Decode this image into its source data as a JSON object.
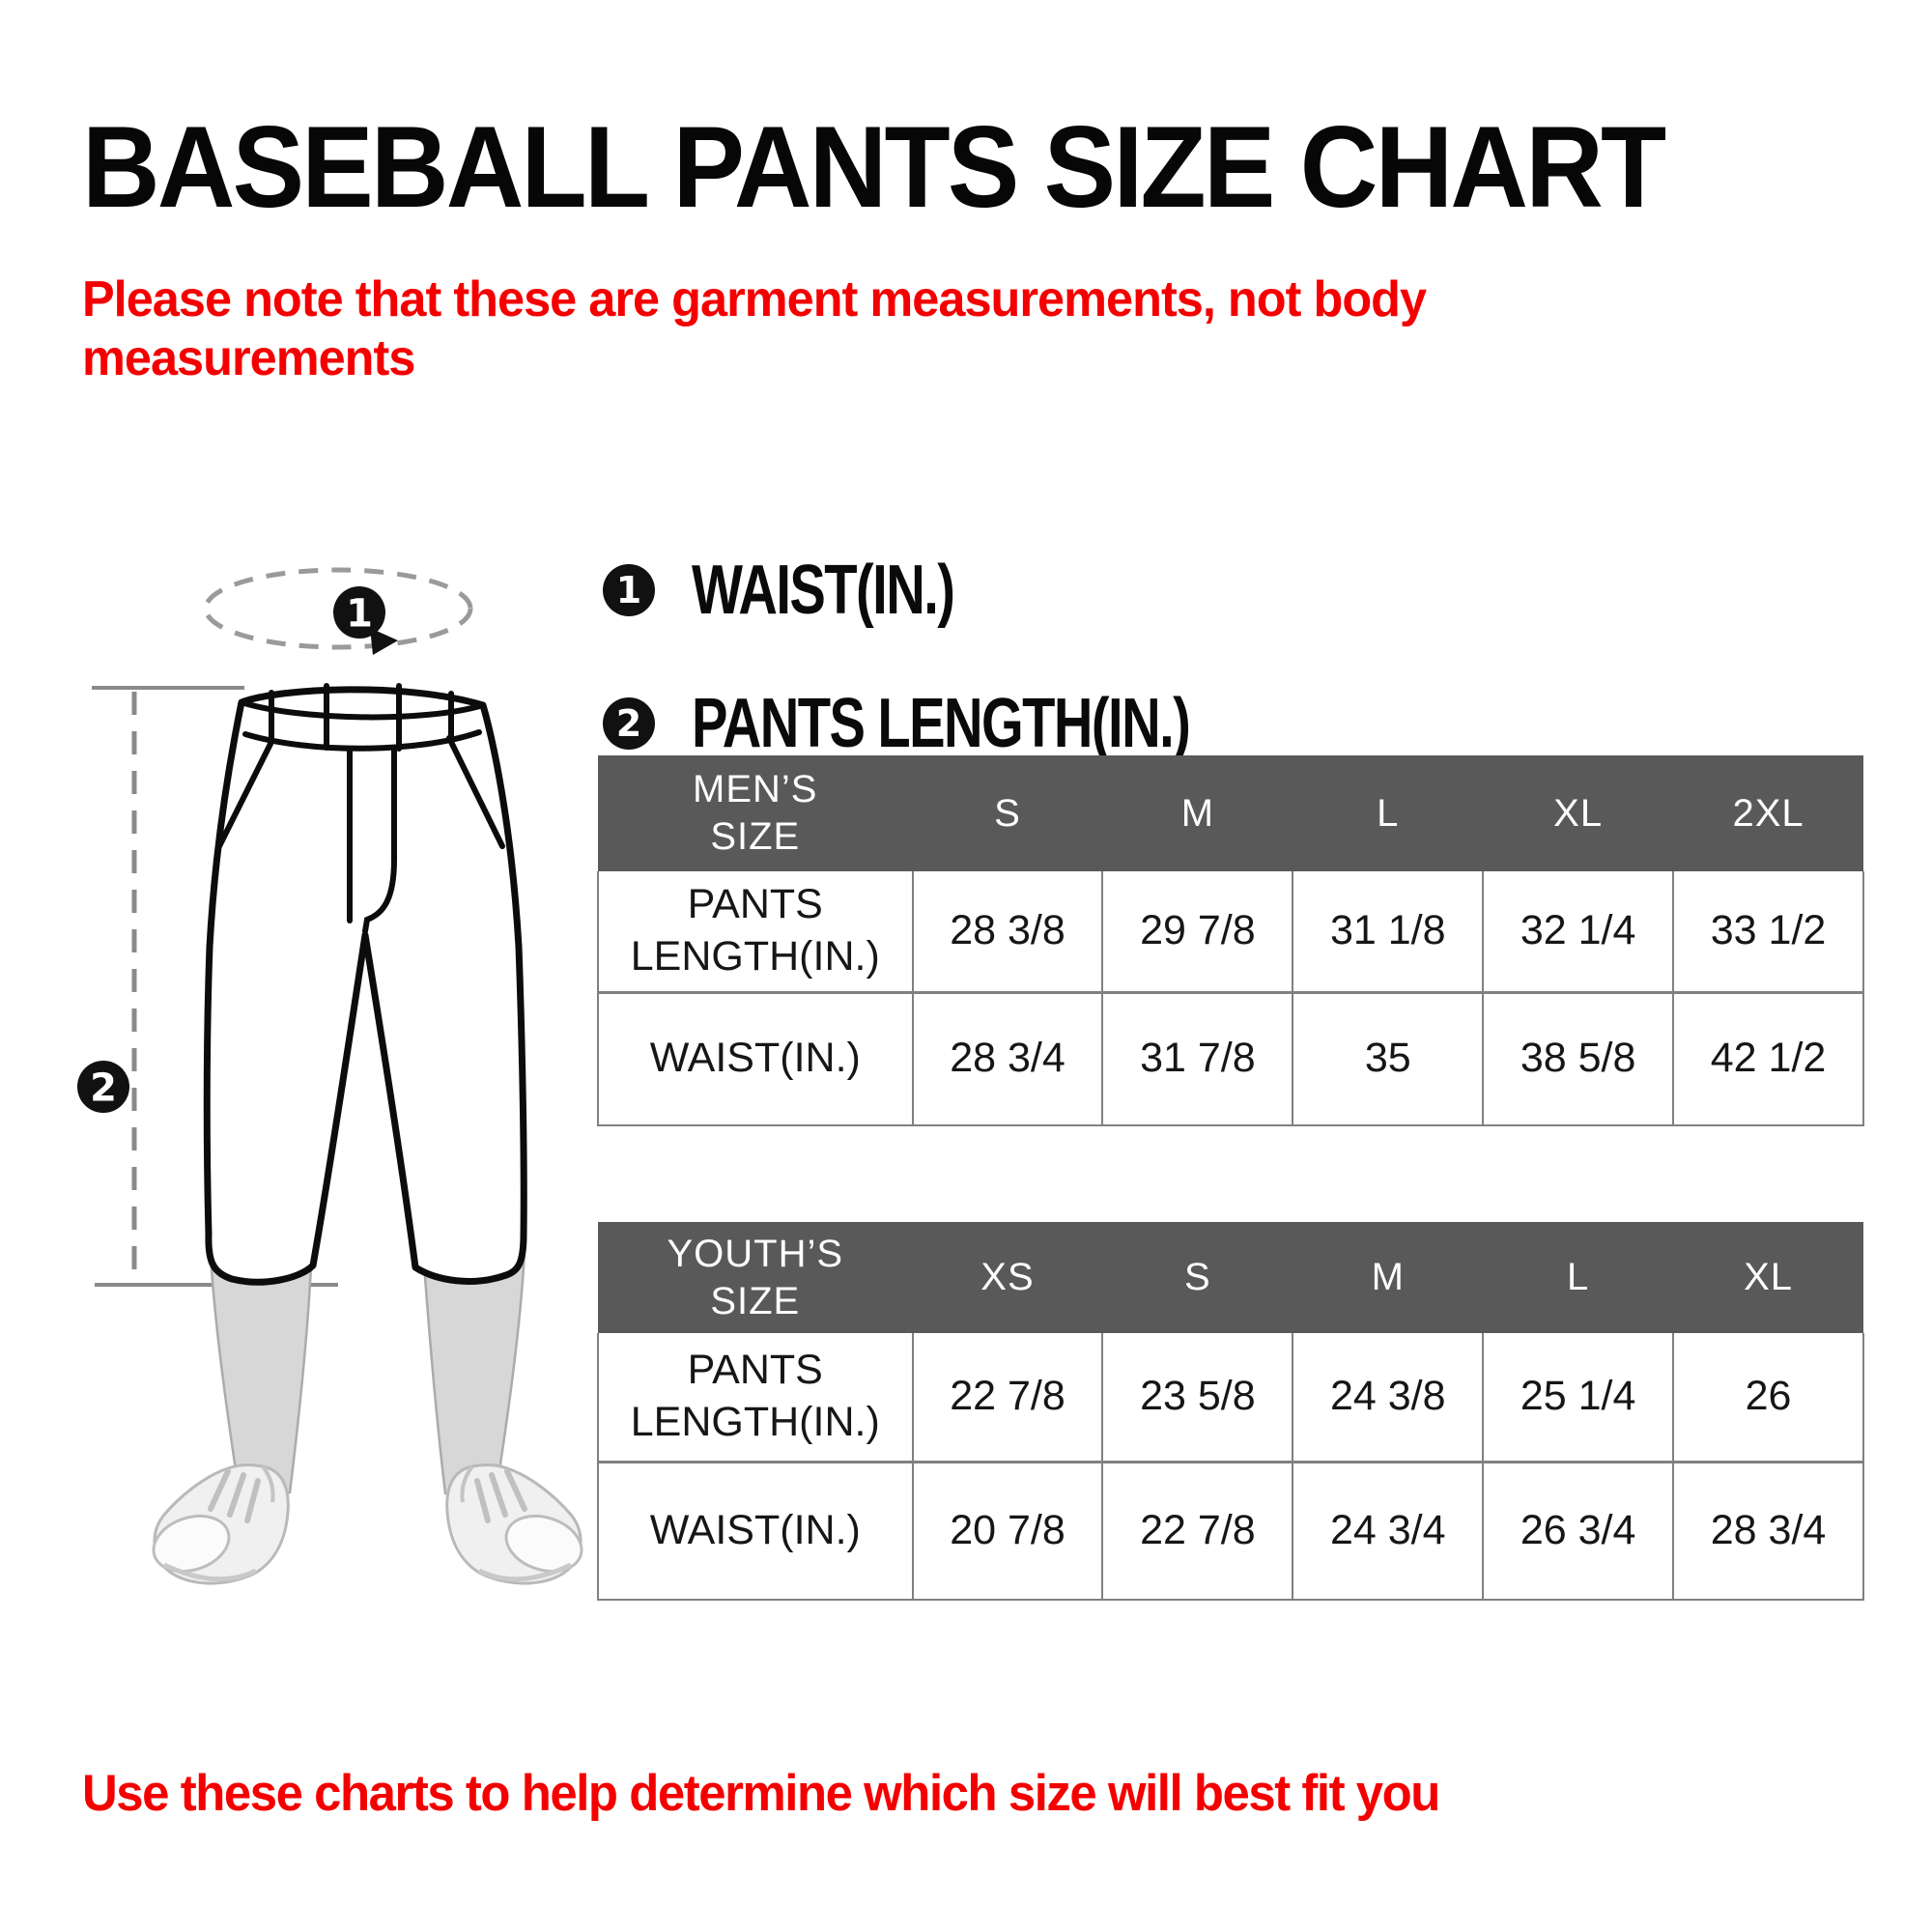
{
  "page": {
    "title": "BASEBALL PANTS SIZE CHART",
    "note": "Please note that these are garment measurements, not body\nmeasurements",
    "footer": "Use these charts to help determine which size will best fit you"
  },
  "colors": {
    "red": "#f40000",
    "header_bg": "#595959",
    "border": "#808080",
    "ink": "#0d0d0d"
  },
  "legend": {
    "items": [
      {
        "marker": "1",
        "label": "WAIST(IN.)"
      },
      {
        "marker": "2",
        "label": "PANTS LENGTH(IN.)"
      }
    ]
  },
  "diagram": {
    "marker1": "1",
    "marker2": "2"
  },
  "chart_data": [
    {
      "type": "table",
      "name": "mens",
      "corner_label": "MEN’S\nSIZE",
      "columns": [
        "S",
        "M",
        "L",
        "XL",
        "2XL"
      ],
      "rows": [
        {
          "label": "PANTS\nLENGTH(IN.)",
          "values": [
            "28 3/8",
            "29 7/8",
            "31 1/8",
            "32 1/4",
            "33 1/2"
          ]
        },
        {
          "label": "WAIST(IN.)",
          "values": [
            "28 3/4",
            "31 7/8",
            "35",
            "38 5/8",
            "42 1/2"
          ]
        }
      ]
    },
    {
      "type": "table",
      "name": "youths",
      "corner_label": "YOUTH’S\nSIZE",
      "columns": [
        "XS",
        "S",
        "M",
        "L",
        "XL"
      ],
      "rows": [
        {
          "label": "PANTS\nLENGTH(IN.)",
          "values": [
            "22 7/8",
            "23 5/8",
            "24 3/8",
            "25 1/4",
            "26"
          ]
        },
        {
          "label": "WAIST(IN.)",
          "values": [
            "20 7/8",
            "22 7/8",
            "24 3/4",
            "26 3/4",
            "28 3/4"
          ]
        }
      ]
    }
  ]
}
